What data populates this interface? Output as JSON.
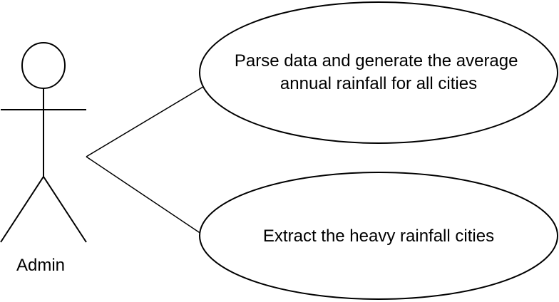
{
  "diagram": {
    "type": "use-case-diagram",
    "actor": {
      "name": "Admin"
    },
    "use_cases": [
      {
        "lines": [
          "Parse data and generate the average",
          "annual rainfall for all cities"
        ]
      },
      {
        "lines": [
          "Extract the heavy rainfall cities"
        ]
      }
    ],
    "colors": {
      "stroke": "#000000",
      "fill": "#ffffff",
      "text": "#000000"
    }
  }
}
